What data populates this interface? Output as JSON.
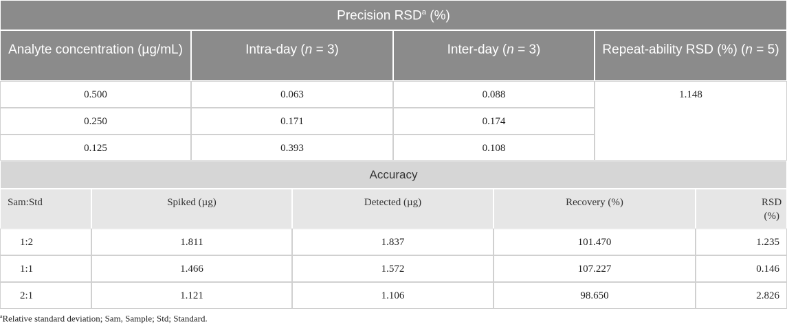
{
  "precision": {
    "title": [
      {
        "text": "Precision RSD"
      },
      {
        "text": "a",
        "style": "sup"
      },
      {
        "text": " (%)"
      }
    ],
    "headers": [
      [
        {
          "text": "Analyte concentration (µg/mL)"
        }
      ],
      [
        {
          "text": "Intra-day ("
        },
        {
          "text": "n",
          "style": "italic"
        },
        {
          "text": " = 3)"
        }
      ],
      [
        {
          "text": "Inter-day ("
        },
        {
          "text": "n",
          "style": "italic"
        },
        {
          "text": " = 3)"
        }
      ],
      [
        {
          "text": "Repeat-ability RSD (%) ("
        },
        {
          "text": "n",
          "style": "italic"
        },
        {
          "text": " = 5)"
        }
      ]
    ],
    "rows": [
      [
        "0.500",
        "0.063",
        "0.088",
        "1.148"
      ],
      [
        "0.250",
        "0.171",
        "0.174"
      ],
      [
        "0.125",
        "0.393",
        "0.108"
      ]
    ]
  },
  "accuracy": {
    "title": "Accuracy",
    "headers": [
      "Sam:Std",
      "Spiked (µg)",
      "Detected (µg)",
      "Recovery (%)",
      "RSD (%)"
    ],
    "rows": [
      [
        "1:2",
        "1.811",
        "1.837",
        "101.470",
        "1.235"
      ],
      [
        "1:1",
        "1.466",
        "1.572",
        "107.227",
        "0.146"
      ],
      [
        "2:1",
        "1.121",
        "1.106",
        "98.650",
        "2.826"
      ]
    ]
  },
  "footnote": [
    {
      "text": "a",
      "style": "sup"
    },
    {
      "text": "Relative standard deviation; Sam, Sample; Std; Standard."
    }
  ]
}
